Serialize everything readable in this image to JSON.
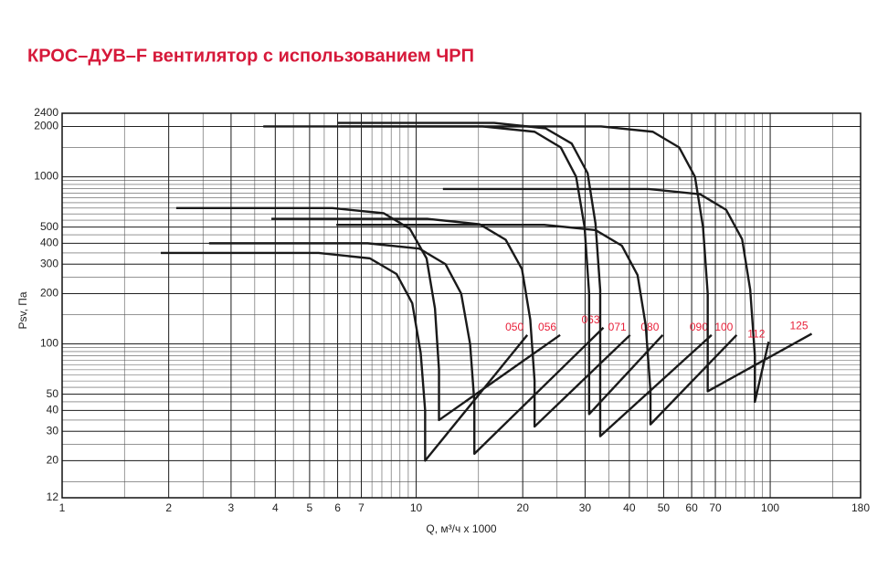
{
  "chart_data": {
    "type": "line",
    "title": "КРОС–ДУВ–F вентилятор с использованием ЧРП",
    "x_label": "Q, м³/ч x 1000",
    "y_label": "Psv, Па",
    "log_x": true,
    "log_y": true,
    "grid": true,
    "xlim": [
      1,
      180
    ],
    "ylim": [
      12,
      2400
    ],
    "xticks": [
      1,
      2,
      3,
      4,
      5,
      6,
      7,
      10,
      20,
      30,
      40,
      50,
      60,
      70,
      100,
      180
    ],
    "yticks": [
      12,
      20,
      30,
      40,
      50,
      100,
      200,
      300,
      400,
      500,
      1000,
      2000,
      2400
    ],
    "label_color": "#e8213a",
    "series": [
      {
        "name": "050",
        "color": "#1a1a1a",
        "x": [
          1.9,
          5.3,
          7.4,
          8.8,
          9.75,
          10.3,
          10.6,
          10.6,
          20.6
        ],
        "values": [
          350,
          350,
          325,
          262,
          175,
          88,
          40,
          20,
          113
        ]
      },
      {
        "name": "056",
        "color": "#1a1a1a",
        "x": [
          2.1,
          5.8,
          8.1,
          9.6,
          10.7,
          11.3,
          11.6,
          11.6,
          25.5
        ],
        "values": [
          650,
          650,
          605,
          488,
          325,
          163,
          70,
          35,
          113
        ]
      },
      {
        "name": "063",
        "color": "#1a1a1a",
        "x": [
          2.6,
          7.3,
          10.2,
          12.1,
          13.4,
          14.2,
          14.6,
          14.6,
          33.8
        ],
        "values": [
          400,
          400,
          372,
          300,
          200,
          100,
          45,
          22,
          125
        ]
      },
      {
        "name": "071",
        "color": "#1a1a1a",
        "x": [
          3.9,
          10.8,
          15.1,
          17.9,
          19.9,
          21,
          21.6,
          21.6,
          40.2
        ],
        "values": [
          560,
          560,
          520,
          420,
          280,
          140,
          60,
          32,
          113
        ]
      },
      {
        "name": "080",
        "color": "#1a1a1a",
        "x": [
          3.7,
          15.4,
          21.6,
          25.6,
          28.3,
          29.9,
          30.8,
          30.8,
          49.7
        ],
        "values": [
          2000,
          2000,
          1860,
          1500,
          1000,
          500,
          200,
          38,
          113
        ]
      },
      {
        "name": "090",
        "color": "#1a1a1a",
        "x": [
          6,
          16.6,
          23.2,
          27.5,
          30.5,
          32.1,
          33.1,
          33.1,
          68.3
        ],
        "values": [
          2100,
          2100,
          1950,
          1580,
          1050,
          525,
          210,
          28,
          113
        ]
      },
      {
        "name": "100",
        "color": "#1a1a1a",
        "x": [
          5.95,
          23,
          32.1,
          38.1,
          42.2,
          44.5,
          45.9,
          45.9,
          80.4
        ],
        "values": [
          516,
          516,
          480,
          387,
          258,
          129,
          52,
          33,
          113
        ]
      },
      {
        "name": "112",
        "color": "#1a1a1a",
        "x": [
          11.9,
          45.3,
          63.4,
          75.1,
          83.3,
          87.8,
          90.5,
          90.5,
          99
        ],
        "values": [
          845,
          845,
          786,
          634,
          423,
          211,
          85,
          45,
          103
        ]
      },
      {
        "name": "125",
        "color": "#1a1a1a",
        "x": [
          6.1,
          33.3,
          46.6,
          55.3,
          61.3,
          64.6,
          66.6,
          66.6,
          131
        ],
        "values": [
          2000,
          2000,
          1860,
          1500,
          1000,
          500,
          200,
          52,
          115
        ]
      }
    ]
  }
}
